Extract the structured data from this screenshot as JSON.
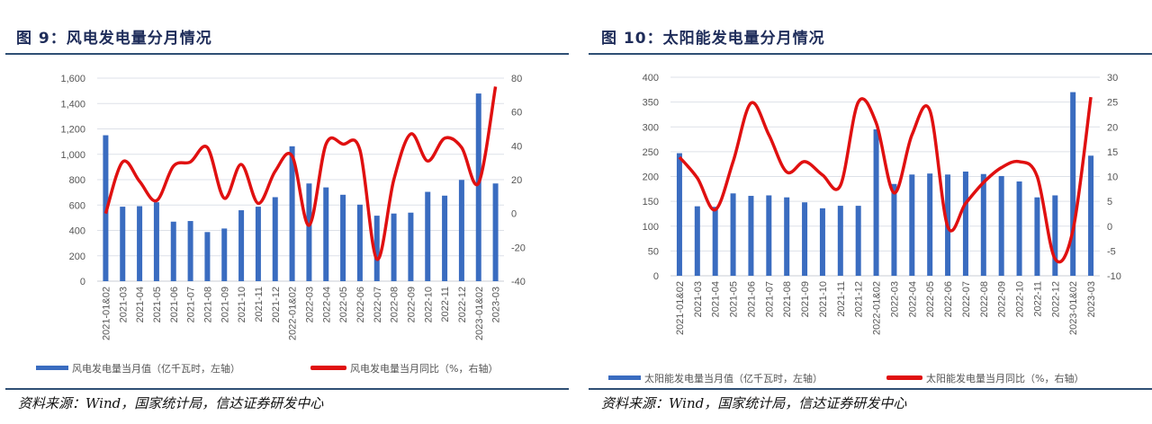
{
  "source_text": "资料来源：Wind，国家统计局，信达证券研发中心",
  "chart_data": [
    {
      "type": "bar+line",
      "title": "图 9：风电发电量分月情况",
      "categories": [
        "2021-01&02",
        "2021-03",
        "2021-04",
        "2021-05",
        "2021-06",
        "2021-07",
        "2021-08",
        "2021-09",
        "2021-10",
        "2021-11",
        "2021-12",
        "2022-01&02",
        "2022-03",
        "2022-04",
        "2022-05",
        "2022-06",
        "2022-07",
        "2022-08",
        "2022-09",
        "2022-10",
        "2022-11",
        "2022-12",
        "2023-01&02",
        "2023-03"
      ],
      "series": [
        {
          "name": "风电发电量当月值（亿千瓦时，左轴）",
          "type": "bar",
          "axis": "left",
          "color": "#3a6cc0",
          "values": [
            1150,
            587,
            591,
            622,
            469,
            474,
            387,
            415,
            559,
            587,
            662,
            1063,
            770,
            739,
            681,
            603,
            516,
            533,
            540,
            704,
            674,
            798,
            1479,
            770
          ]
        },
        {
          "name": "风电发电量当月同比（%，右轴）",
          "type": "line",
          "axis": "right",
          "color": "#e01010",
          "values": [
            0,
            30.5,
            19,
            7.6,
            28,
            30.5,
            39,
            9,
            29,
            6,
            25,
            34,
            -7,
            41,
            41,
            37.5,
            -27,
            20,
            47,
            31,
            44.5,
            39,
            18,
            75
          ]
        }
      ],
      "left_axis": {
        "range": [
          0,
          1600
        ],
        "ticks": [
          "0",
          "200",
          "400",
          "600",
          "800",
          "1,000",
          "1,200",
          "1,400",
          "1,600"
        ]
      },
      "right_axis": {
        "range": [
          -40,
          80
        ],
        "ticks": [
          "-40",
          "-20",
          "0",
          "20",
          "40",
          "60",
          "80"
        ]
      },
      "grid": true,
      "legend": "bottom"
    },
    {
      "type": "bar+line",
      "title": "图 10：太阳能发电量分月情况",
      "categories": [
        "2021-01&02",
        "2021-03",
        "2021-04",
        "2021-05",
        "2021-06",
        "2021-07",
        "2021-08",
        "2021-09",
        "2021-10",
        "2021-11",
        "2021-12",
        "2022-01&02",
        "2022-03",
        "2022-04",
        "2022-05",
        "2022-06",
        "2022-07",
        "2022-08",
        "2022-09",
        "2022-10",
        "2022-11",
        "2022-12",
        "2023-01&02",
        "2023-03"
      ],
      "series": [
        {
          "name": "太阳能发电量当月值（亿千瓦时，左轴）",
          "type": "bar",
          "axis": "left",
          "color": "#3a6cc0",
          "values": [
            247,
            140,
            139,
            166,
            161,
            162,
            158,
            148,
            136,
            141,
            141,
            295,
            185,
            204,
            206,
            204,
            210,
            205,
            201,
            190,
            158,
            162,
            370,
            242
          ]
        },
        {
          "name": "太阳能发电量当月同比（%，右轴）",
          "type": "line",
          "axis": "right",
          "color": "#e01010",
          "values": [
            13.9,
            9.7,
            3.3,
            13,
            24.8,
            18.4,
            10.9,
            13,
            10.3,
            8.2,
            25,
            20.8,
            6.7,
            18.4,
            23.3,
            -0.1,
            4.6,
            8.8,
            11.8,
            13,
            10,
            -6.6,
            -0.8,
            26
          ]
        }
      ],
      "left_axis": {
        "range": [
          0,
          400
        ],
        "ticks": [
          "0",
          "50",
          "100",
          "150",
          "200",
          "250",
          "300",
          "350",
          "400"
        ]
      },
      "right_axis": {
        "range": [
          -10,
          30
        ],
        "ticks": [
          "-10",
          "-5",
          "0",
          "5",
          "10",
          "15",
          "20",
          "25",
          "30"
        ]
      },
      "grid": true,
      "legend": "bottom"
    }
  ]
}
